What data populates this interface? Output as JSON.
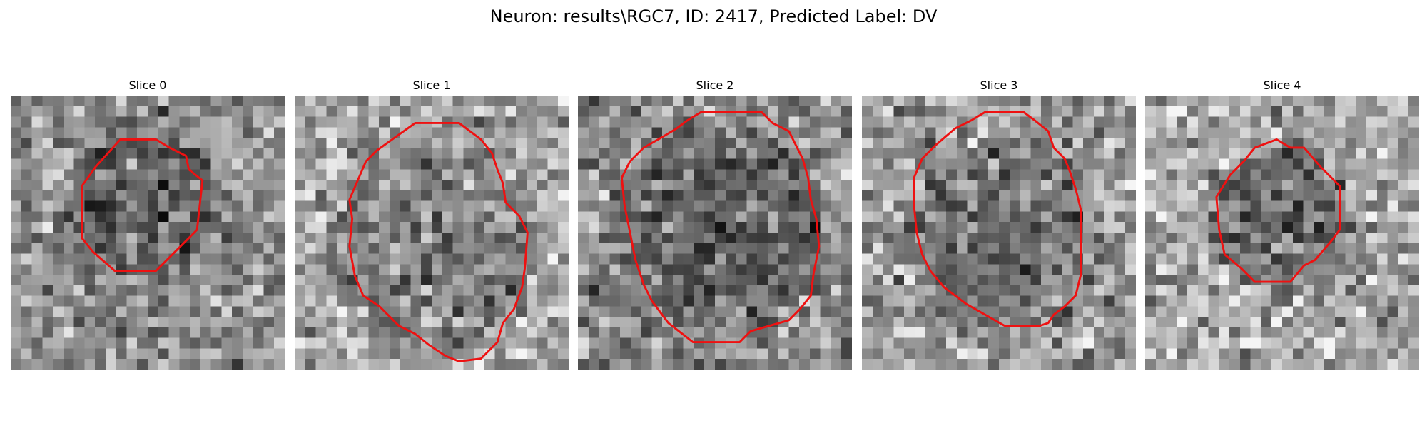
{
  "figure": {
    "suptitle": "Neuron: results\\RGC7, ID: 2417, Predicted Label: DV",
    "contour_color": "#ee1111",
    "grid_size": 26
  },
  "slices": [
    {
      "title": "Slice 0",
      "seed": 11,
      "background_mean": 0.56,
      "dark_center": [
        0.48,
        0.38
      ],
      "dark_radius": 0.28,
      "dark_strength": 0.22,
      "contour": [
        [
          0.4,
          0.16
        ],
        [
          0.53,
          0.16
        ],
        [
          0.58,
          0.19
        ],
        [
          0.64,
          0.22
        ],
        [
          0.65,
          0.27
        ],
        [
          0.7,
          0.31
        ],
        [
          0.68,
          0.49
        ],
        [
          0.62,
          0.55
        ],
        [
          0.53,
          0.64
        ],
        [
          0.38,
          0.64
        ],
        [
          0.3,
          0.57
        ],
        [
          0.26,
          0.52
        ],
        [
          0.26,
          0.33
        ],
        [
          0.31,
          0.26
        ]
      ]
    },
    {
      "title": "Slice 1",
      "seed": 23,
      "background_mean": 0.66,
      "dark_center": [
        0.5,
        0.56
      ],
      "dark_radius": 0.38,
      "dark_strength": 0.18,
      "contour": [
        [
          0.44,
          0.1
        ],
        [
          0.6,
          0.1
        ],
        [
          0.64,
          0.13
        ],
        [
          0.68,
          0.16
        ],
        [
          0.72,
          0.21
        ],
        [
          0.74,
          0.27
        ],
        [
          0.76,
          0.32
        ],
        [
          0.77,
          0.39
        ],
        [
          0.82,
          0.44
        ],
        [
          0.85,
          0.5
        ],
        [
          0.84,
          0.63
        ],
        [
          0.83,
          0.7
        ],
        [
          0.8,
          0.78
        ],
        [
          0.76,
          0.83
        ],
        [
          0.74,
          0.9
        ],
        [
          0.68,
          0.96
        ],
        [
          0.6,
          0.97
        ],
        [
          0.55,
          0.95
        ],
        [
          0.49,
          0.91
        ],
        [
          0.44,
          0.87
        ],
        [
          0.38,
          0.84
        ],
        [
          0.31,
          0.77
        ],
        [
          0.25,
          0.73
        ],
        [
          0.22,
          0.66
        ],
        [
          0.2,
          0.55
        ],
        [
          0.21,
          0.45
        ],
        [
          0.2,
          0.38
        ],
        [
          0.23,
          0.31
        ],
        [
          0.26,
          0.24
        ],
        [
          0.3,
          0.2
        ],
        [
          0.37,
          0.15
        ]
      ]
    },
    {
      "title": "Slice 2",
      "seed": 37,
      "background_mean": 0.55,
      "dark_center": [
        0.52,
        0.48
      ],
      "dark_radius": 0.38,
      "dark_strength": 0.2,
      "contour": [
        [
          0.45,
          0.06
        ],
        [
          0.67,
          0.06
        ],
        [
          0.71,
          0.1
        ],
        [
          0.77,
          0.13
        ],
        [
          0.8,
          0.19
        ],
        [
          0.82,
          0.23
        ],
        [
          0.84,
          0.3
        ],
        [
          0.85,
          0.38
        ],
        [
          0.87,
          0.45
        ],
        [
          0.88,
          0.55
        ],
        [
          0.86,
          0.65
        ],
        [
          0.85,
          0.73
        ],
        [
          0.81,
          0.78
        ],
        [
          0.77,
          0.82
        ],
        [
          0.7,
          0.84
        ],
        [
          0.63,
          0.86
        ],
        [
          0.59,
          0.9
        ],
        [
          0.42,
          0.9
        ],
        [
          0.33,
          0.83
        ],
        [
          0.27,
          0.75
        ],
        [
          0.24,
          0.69
        ],
        [
          0.21,
          0.6
        ],
        [
          0.19,
          0.5
        ],
        [
          0.17,
          0.4
        ],
        [
          0.16,
          0.3
        ],
        [
          0.19,
          0.24
        ],
        [
          0.24,
          0.19
        ],
        [
          0.31,
          0.15
        ],
        [
          0.36,
          0.12
        ],
        [
          0.4,
          0.09
        ]
      ]
    },
    {
      "title": "Slice 3",
      "seed": 51,
      "background_mean": 0.62,
      "dark_center": [
        0.52,
        0.52
      ],
      "dark_radius": 0.36,
      "dark_strength": 0.22,
      "contour": [
        [
          0.45,
          0.06
        ],
        [
          0.59,
          0.06
        ],
        [
          0.63,
          0.09
        ],
        [
          0.68,
          0.13
        ],
        [
          0.7,
          0.19
        ],
        [
          0.74,
          0.23
        ],
        [
          0.76,
          0.28
        ],
        [
          0.78,
          0.34
        ],
        [
          0.8,
          0.42
        ],
        [
          0.8,
          0.56
        ],
        [
          0.8,
          0.65
        ],
        [
          0.78,
          0.73
        ],
        [
          0.74,
          0.77
        ],
        [
          0.7,
          0.8
        ],
        [
          0.68,
          0.83
        ],
        [
          0.65,
          0.84
        ],
        [
          0.59,
          0.84
        ],
        [
          0.52,
          0.84
        ],
        [
          0.45,
          0.8
        ],
        [
          0.38,
          0.76
        ],
        [
          0.3,
          0.7
        ],
        [
          0.25,
          0.64
        ],
        [
          0.22,
          0.58
        ],
        [
          0.2,
          0.5
        ],
        [
          0.19,
          0.4
        ],
        [
          0.19,
          0.3
        ],
        [
          0.22,
          0.23
        ],
        [
          0.27,
          0.18
        ],
        [
          0.34,
          0.12
        ],
        [
          0.4,
          0.09
        ]
      ]
    },
    {
      "title": "Slice 4",
      "seed": 64,
      "background_mean": 0.68,
      "dark_center": [
        0.5,
        0.46
      ],
      "dark_radius": 0.26,
      "dark_strength": 0.3,
      "contour": [
        [
          0.4,
          0.19
        ],
        [
          0.48,
          0.16
        ],
        [
          0.53,
          0.19
        ],
        [
          0.58,
          0.19
        ],
        [
          0.64,
          0.26
        ],
        [
          0.71,
          0.33
        ],
        [
          0.71,
          0.49
        ],
        [
          0.68,
          0.53
        ],
        [
          0.62,
          0.6
        ],
        [
          0.58,
          0.62
        ],
        [
          0.53,
          0.68
        ],
        [
          0.4,
          0.68
        ],
        [
          0.35,
          0.63
        ],
        [
          0.29,
          0.58
        ],
        [
          0.27,
          0.49
        ],
        [
          0.26,
          0.37
        ],
        [
          0.31,
          0.29
        ],
        [
          0.36,
          0.24
        ]
      ]
    }
  ]
}
